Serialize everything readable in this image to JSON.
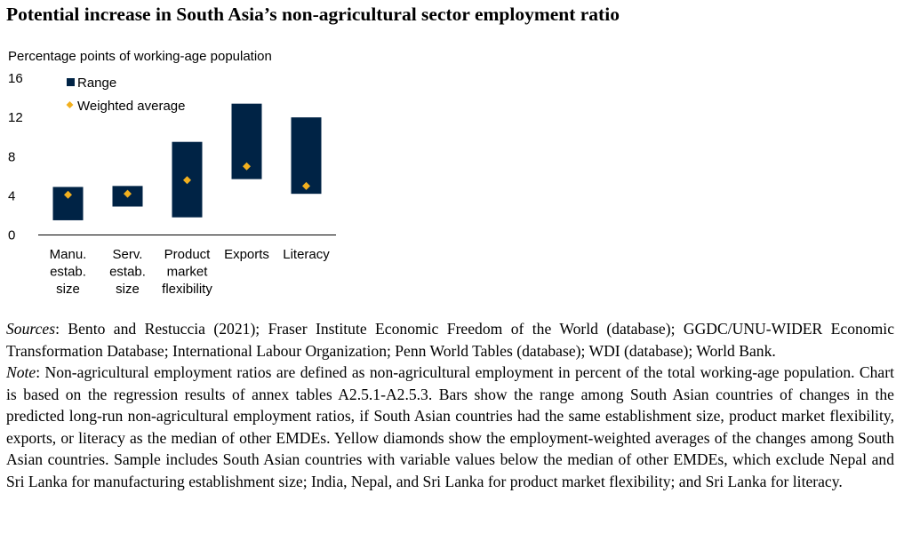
{
  "title": "Potential increase in South Asia’s non-agricultural sector employment ratio",
  "chart_data": {
    "type": "range",
    "ylabel": "Percentage points of working-age population",
    "ylim": [
      0,
      16
    ],
    "yticks": [
      0,
      4,
      8,
      12,
      16
    ],
    "categories": [
      [
        "Manu.",
        "estab.",
        "size"
      ],
      [
        "Serv.",
        "estab.",
        "size"
      ],
      [
        "Product",
        "market",
        "flexibility"
      ],
      [
        "Exports"
      ],
      [
        "Literacy"
      ]
    ],
    "series": [
      {
        "name": "Range",
        "low": [
          1.5,
          2.9,
          1.8,
          5.7,
          4.2
        ],
        "high": [
          4.9,
          5.0,
          9.5,
          13.4,
          12.0
        ],
        "color": "#002345"
      },
      {
        "name": "Weighted average",
        "values": [
          4.1,
          4.2,
          5.6,
          7.0,
          5.0
        ],
        "color": "#f2b01e"
      }
    ],
    "legend": [
      "Range",
      "Weighted average"
    ],
    "legend_position": "top-left",
    "grid": false
  },
  "notes": {
    "sources_label": "Sources",
    "sources_text": ": Bento and Restuccia (2021); Fraser Institute Economic Freedom of the World (database); GGDC/UNU-WIDER Economic Transformation Database; International Labour Organization; Penn World Tables (database); WDI (database); World Bank.",
    "note_label": "Note",
    "note_text": ": Non-agricultural employment ratios are defined as non-agricultural employment in percent of the total working-age population. Chart is based on the regression results of annex tables A2.5.1-A2.5.3. Bars show the range among South Asian countries of changes in the predicted long-run non-agricultural employment ratios, if South Asian countries had the same establishment size, product market flexibility, exports, or literacy as the median of other EMDEs. Yellow diamonds show the employment-weighted averages of the changes among South Asian countries. Sample includes South Asian countries with variable values below the median of other EMDEs, which exclude Nepal and Sri Lanka for manufacturing establishment size; India, Nepal, and Sri Lanka for product market flexibility; and Sri Lanka for literacy."
  }
}
